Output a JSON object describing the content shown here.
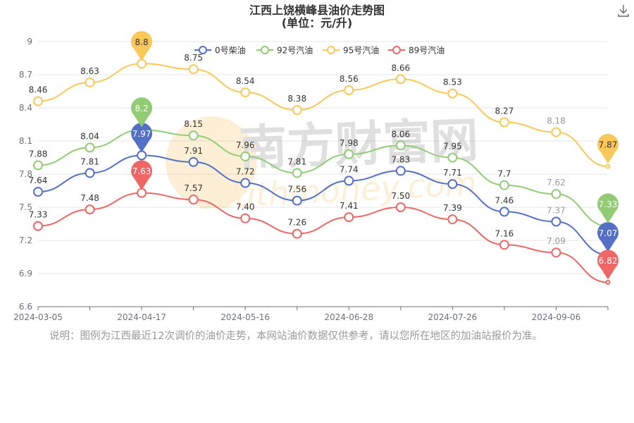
{
  "title": "江西上饶横峰县油价走势图",
  "subtitle": "(单位：元/升)",
  "note": "说明：图例为江西最近12次调价的油价走势，本网站油价数据仅供参考，请以您所在地区的加油站报价为准。",
  "watermark": {
    "cn": "南方财富网",
    "en": "southmoney.com"
  },
  "download_icon": "download-icon",
  "chart_data": {
    "type": "line",
    "title": "江西上饶横峰县油价走势图",
    "subtitle": "(单位：元/升)",
    "xlabel": "",
    "ylabel": "",
    "x": [
      "2024-03-05",
      "",
      "2024-04-17",
      "",
      "2024-05-16",
      "",
      "2024-06-28",
      "",
      "2024-07-26",
      "",
      "2024-09-06",
      ""
    ],
    "xticks": [
      "2024-03-05",
      "2024-04-17",
      "2024-05-16",
      "2024-06-28",
      "2024-07-26",
      "2024-09-06"
    ],
    "yticks": [
      "6.6",
      "6.9",
      "7.2",
      "7.5",
      "7.8",
      "8.1",
      "8.4",
      "8.7",
      "9"
    ],
    "ylim": [
      6.6,
      9.0
    ],
    "grid": true,
    "legend": "top-center",
    "series": [
      {
        "name": "0号柴油",
        "color": "#5470c6",
        "values": [
          7.64,
          7.81,
          7.97,
          7.91,
          7.72,
          7.56,
          7.74,
          7.83,
          7.71,
          7.46,
          7.37,
          7.07
        ],
        "labels": [
          "7.64",
          "7.81",
          "",
          "7.91",
          "7.72",
          "7.56",
          "7.74",
          "7.83",
          "7.71",
          "7.46",
          "7.37",
          ""
        ],
        "max_label": "7.97",
        "min_label": "7.07"
      },
      {
        "name": "92号汽油",
        "color": "#91cc75",
        "values": [
          7.88,
          8.04,
          8.2,
          8.15,
          7.96,
          7.81,
          7.98,
          8.06,
          7.95,
          7.7,
          7.62,
          7.33
        ],
        "labels": [
          "7.88",
          "8.04",
          "",
          "8.15",
          "7.96",
          "7.81",
          "7.98",
          "8.06",
          "7.95",
          "7.7",
          "7.62",
          ""
        ],
        "max_label": "8.2",
        "min_label": "7.33"
      },
      {
        "name": "95号汽油",
        "color": "#fac858",
        "values": [
          8.46,
          8.63,
          8.8,
          8.75,
          8.54,
          8.38,
          8.56,
          8.66,
          8.53,
          8.27,
          8.18,
          7.87
        ],
        "labels": [
          "8.46",
          "8.63",
          "",
          "8.75",
          "8.54",
          "8.38",
          "8.56",
          "8.66",
          "8.53",
          "8.27",
          "8.18",
          ""
        ],
        "max_label": "8.8",
        "min_label": "7.87"
      },
      {
        "name": "89号汽油",
        "color": "#ee6666",
        "values": [
          7.33,
          7.48,
          7.63,
          7.57,
          7.4,
          7.26,
          7.41,
          7.5,
          7.39,
          7.16,
          7.09,
          6.82
        ],
        "labels": [
          "7.33",
          "7.48",
          "",
          "7.57",
          "7.40",
          "7.26",
          "7.41",
          "7.50",
          "7.39",
          "7.16",
          "7.09",
          ""
        ],
        "max_label": "7.63",
        "min_label": "6.82"
      }
    ]
  }
}
